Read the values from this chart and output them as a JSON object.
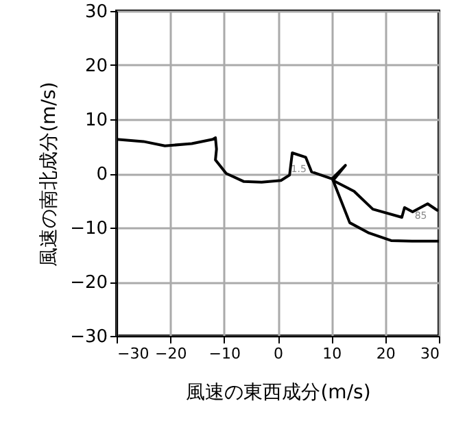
{
  "chart_data": {
    "type": "line",
    "xlabel": "風速の東西成分(m/s)",
    "ylabel": "風速の南北成分(m/s)",
    "xlim": [
      -30,
      30
    ],
    "ylim": [
      -30,
      30
    ],
    "xticks": [
      -30,
      -20,
      -10,
      0,
      10,
      20,
      30
    ],
    "yticks": [
      -30,
      -20,
      -10,
      0,
      10,
      20,
      30
    ],
    "grid": true,
    "marker": "none",
    "line_style": "solid",
    "series": [
      {
        "color": "#000000",
        "x": [
          -30,
          -25,
          -21,
          -16,
          -12.1,
          -11.6,
          -11.4,
          -11.6,
          -9.6,
          -6.3,
          -3,
          0.6,
          2.2,
          2.7,
          5.2,
          6.3,
          10.1,
          12.6,
          10.3,
          14.2,
          17.7,
          23.1,
          23.6,
          25.1,
          27.9,
          29.7
        ],
        "values": [
          6.3,
          5.9,
          5.1,
          5.5,
          6.3,
          6.6,
          4.5,
          2.5,
          0,
          -1.5,
          -1.6,
          -1.3,
          -0.3,
          3.8,
          3.0,
          0.3,
          -1.0,
          1.5,
          -1.3,
          -3.3,
          -6.6,
          -8.1,
          -6.3,
          -7.1,
          -5.6,
          -6.8
        ]
      },
      {
        "color": "#000000",
        "x": [
          10.3,
          13.4,
          17,
          21.1,
          25,
          30
        ],
        "values": [
          -1.3,
          -9.1,
          -11,
          -12.4,
          -12.5,
          -12.5
        ]
      }
    ],
    "annotations": [
      {
        "text": "1.5",
        "x": 5.2,
        "y": 3.0
      },
      {
        "text": "85",
        "x": 27.9,
        "y": -5.6
      }
    ]
  }
}
